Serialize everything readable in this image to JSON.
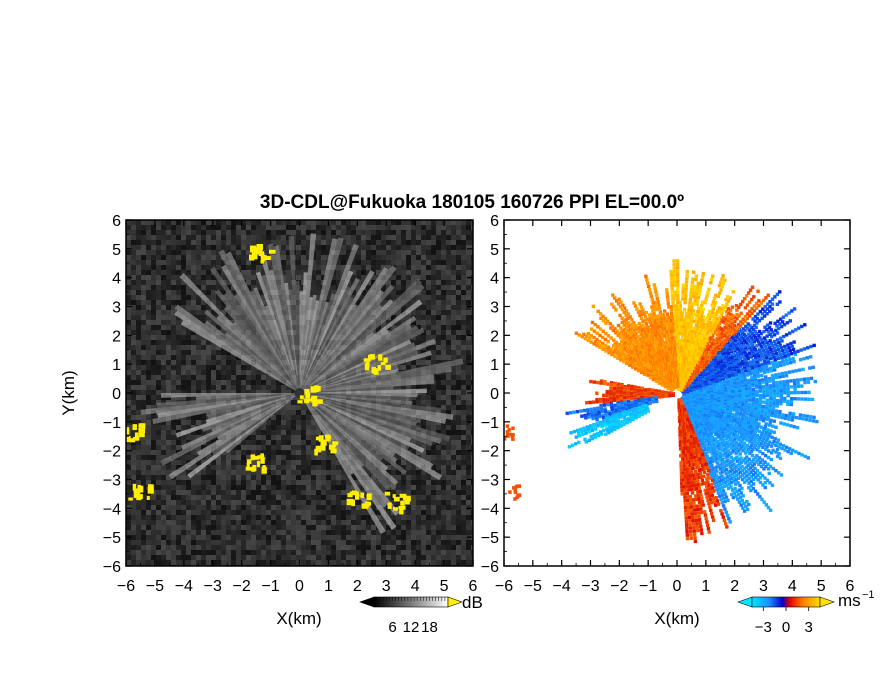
{
  "title": "3D-CDL@Fukuoka 180105 160726 PPI EL=00.0º",
  "chart_data": [
    {
      "type": "heatmap",
      "panel": "left",
      "quantity": "SNR",
      "xlabel": "X(km)",
      "ylabel": "Y(km)",
      "xlim": [
        -6,
        6
      ],
      "ylim": [
        -6,
        6
      ],
      "xticks": [
        -6,
        -5,
        -4,
        -3,
        -2,
        -1,
        0,
        1,
        2,
        3,
        4,
        5,
        6
      ],
      "yticks": [
        -6,
        -5,
        -4,
        -3,
        -2,
        -1,
        0,
        1,
        2,
        3,
        4,
        5,
        6
      ],
      "colormap": "grayscale with yellow overflow",
      "colorbar": {
        "unit": "dB",
        "ticks": [
          6,
          12,
          18
        ],
        "range": [
          0,
          24
        ],
        "overflow_color": "#ffee00",
        "underflow_color": "#000000"
      },
      "beam_sectors_deg": [
        [
          -60,
          150
        ],
        [
          180,
          220
        ]
      ],
      "yellow_patches_km": [
        {
          "x": 0.3,
          "y": 0.0
        },
        {
          "x": 0.8,
          "y": -1.7
        },
        {
          "x": 2.0,
          "y": -3.6
        },
        {
          "x": 3.3,
          "y": -3.7
        },
        {
          "x": -5.9,
          "y": -1.3
        },
        {
          "x": -5.6,
          "y": -3.4
        },
        {
          "x": -1.5,
          "y": -2.3
        },
        {
          "x": 2.6,
          "y": 1.1
        },
        {
          "x": -1.4,
          "y": 4.9
        }
      ]
    },
    {
      "type": "heatmap",
      "panel": "right",
      "quantity": "Doppler velocity",
      "xlabel": "X(km)",
      "ylabel": "",
      "xlim": [
        -6,
        6
      ],
      "ylim": [
        -6,
        6
      ],
      "xticks": [
        -6,
        -5,
        -4,
        -3,
        -2,
        -1,
        0,
        1,
        2,
        3,
        4,
        5,
        6
      ],
      "yticks": [
        -6,
        -5,
        -4,
        -3,
        -2,
        -1,
        0,
        1,
        2,
        3,
        4,
        5,
        6
      ],
      "colormap": "cyan-blue-red-orange-yellow",
      "colorbar": {
        "unit": "ms",
        "unit_exponent": "−1",
        "ticks": [
          -3,
          0,
          3
        ],
        "range": [
          -4.5,
          4.5
        ]
      },
      "sectors": [
        {
          "from_deg": -68,
          "to_deg": 20,
          "r_km": [
            0.2,
            5.3
          ],
          "velocity_ms": -2.5
        },
        {
          "from_deg": 20,
          "to_deg": 48,
          "r_km": [
            0.2,
            5.2
          ],
          "velocity_ms": -1.4
        },
        {
          "from_deg": -88,
          "to_deg": -68,
          "r_km": [
            0.2,
            5.2
          ],
          "velocity_ms": 1.2
        },
        {
          "from_deg": 48,
          "to_deg": 62,
          "r_km": [
            0.2,
            4.8
          ],
          "velocity_ms": 1.8
        },
        {
          "from_deg": 62,
          "to_deg": 95,
          "r_km": [
            0.2,
            4.7
          ],
          "velocity_ms": 3.8
        },
        {
          "from_deg": 95,
          "to_deg": 150,
          "r_km": [
            0.3,
            4.4
          ],
          "velocity_ms": 2.6
        },
        {
          "from_deg": 170,
          "to_deg": 188,
          "r_km": [
            0.2,
            3.6
          ],
          "velocity_ms": 1.4
        },
        {
          "from_deg": 188,
          "to_deg": 198,
          "r_km": [
            0.8,
            4.3
          ],
          "velocity_ms": -1.8
        },
        {
          "from_deg": 198,
          "to_deg": 210,
          "r_km": [
            1.2,
            4.4
          ],
          "velocity_ms": -3.6
        }
      ],
      "edge_patches_km": [
        {
          "x": -5.9,
          "y": -1.3,
          "velocity_ms": 1.6
        },
        {
          "x": -5.7,
          "y": -3.4,
          "velocity_ms": 1.6
        }
      ]
    }
  ]
}
